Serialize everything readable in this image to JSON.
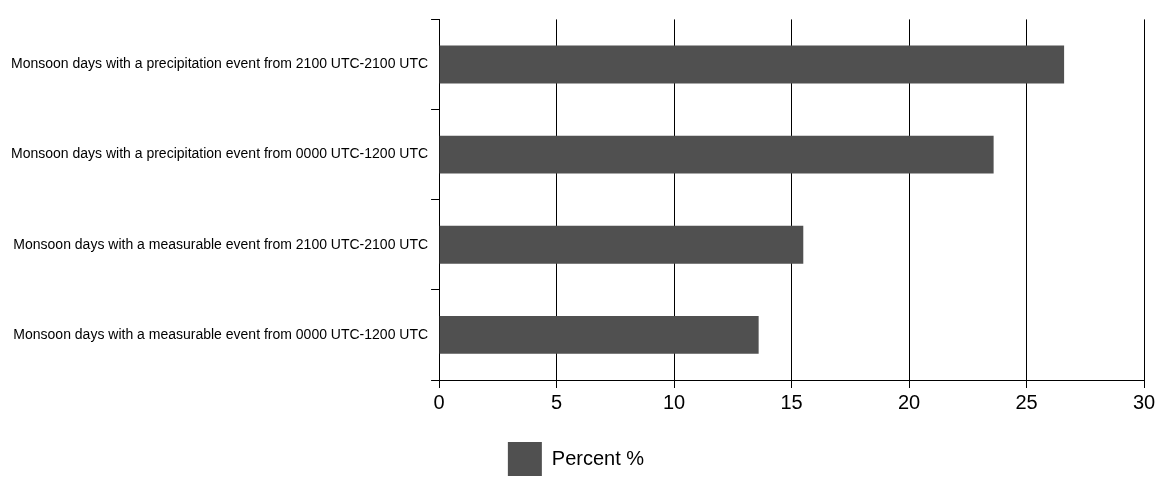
{
  "chart_data": {
    "type": "bar",
    "orientation": "horizontal",
    "categories": [
      "Monsoon days with a precipitation event from 2100 UTC-2100 UTC",
      "Monsoon days with a precipitation event from 0000 UTC-1200 UTC",
      "Monsoon days with a measurable event from 2100 UTC-2100 UTC",
      "Monsoon days with a measurable event from 0000 UTC-1200 UTC"
    ],
    "series": [
      {
        "name": "Percent %",
        "color": "#505050",
        "values": [
          26.6,
          23.6,
          15.5,
          13.6
        ]
      }
    ],
    "xlim": [
      0,
      30
    ],
    "xticks": [
      0,
      5,
      10,
      15,
      20,
      25,
      30
    ],
    "grid": "x",
    "legend": "bottom"
  }
}
